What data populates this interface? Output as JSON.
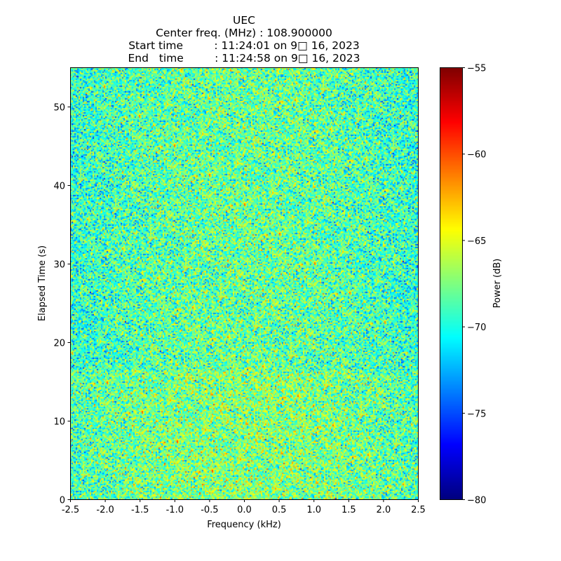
{
  "chart_data": {
    "type": "heatmap",
    "title_lines": [
      "UEC",
      "Center freq. (MHz) : 108.900000",
      "Start time         : 11:24:01 on 9□ 16, 2023",
      "End   time         : 11:24:58 on 9□ 16, 2023"
    ],
    "xlabel": "Frequency (kHz)",
    "ylabel": "Elapsed Time (s)",
    "xlim": [
      -2.5,
      2.5
    ],
    "ylim": [
      0,
      55
    ],
    "xticks": [
      -2.5,
      -2.0,
      -1.5,
      -1.0,
      -0.5,
      0.0,
      0.5,
      1.0,
      1.5,
      2.0,
      2.5
    ],
    "xtick_labels": [
      "-2.5",
      "-2.0",
      "-1.5",
      "-1.0",
      "-0.5",
      "0.0",
      "0.5",
      "1.0",
      "1.5",
      "2.0",
      "2.5"
    ],
    "yticks": [
      0,
      10,
      20,
      30,
      40,
      50
    ],
    "ytick_labels": [
      "0",
      "10",
      "20",
      "30",
      "40",
      "50"
    ],
    "colorbar": {
      "label": "Power (dB)",
      "colormap": "jet",
      "range": [
        -80,
        -55
      ],
      "ticks": [
        -80,
        -75,
        -70,
        -65,
        -60,
        -55
      ],
      "tick_labels": [
        "−80",
        "−75",
        "−70",
        "−65",
        "−60",
        "−55"
      ]
    },
    "values_description_range": [
      -76,
      -62
    ],
    "values_mean": -69.5
  }
}
